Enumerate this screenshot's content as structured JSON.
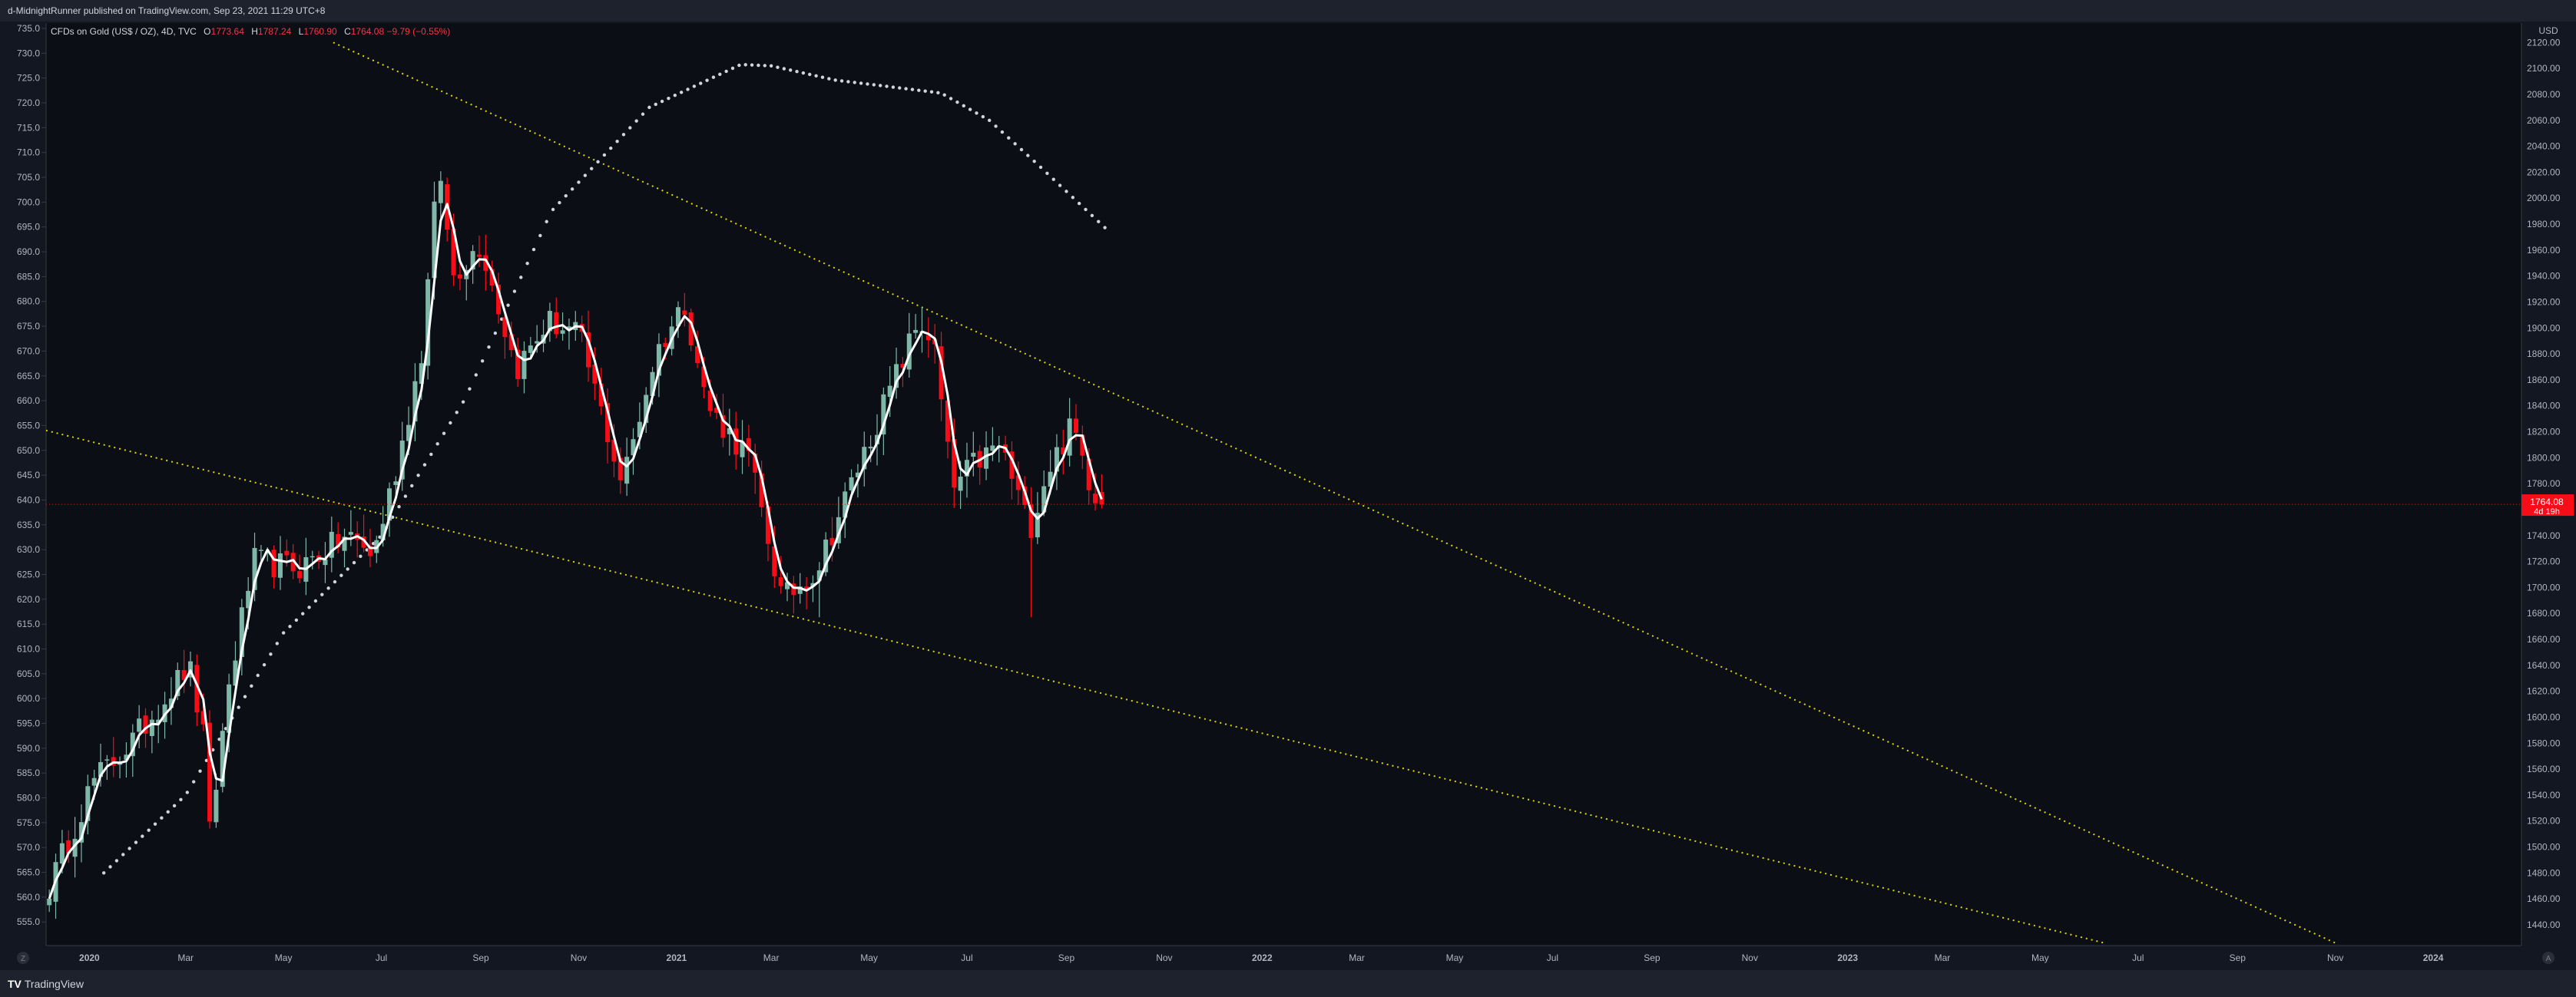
{
  "header": {
    "published": "d-MidnightRunner published on TradingView.com, Sep 23, 2021 11:29 UTC+8"
  },
  "legend": {
    "symbol": "CFDs on Gold (US$ / OZ), 4D, TVC",
    "o_label": "O",
    "o": "1773.64",
    "h_label": "H",
    "h": "1787.24",
    "l_label": "L",
    "l": "1760.90",
    "c_label": "C",
    "c": "1764.08",
    "change": "−9.79 (−0.55%)"
  },
  "footer": {
    "brand": "TradingView"
  },
  "colors": {
    "bg": "#0b0e15",
    "up": "#7fb8a9",
    "down": "#f70d17",
    "trend": "#e0d800",
    "ma": "#ffffff",
    "psar": "#d1d4dc"
  },
  "chart_data": {
    "type": "candlestick",
    "title": "CFDs on Gold (US$ / OZ), 4D, TVC",
    "currency": "USD",
    "x_range": [
      "2019-12-05",
      "2024-02-25"
    ],
    "left_axis": {
      "ticks": [
        "735.0",
        "730.0",
        "725.0",
        "720.0",
        "715.0",
        "710.0",
        "705.0",
        "700.0",
        "695.0",
        "690.0",
        "685.0",
        "680.0",
        "675.0",
        "670.0",
        "665.0",
        "660.0",
        "655.0",
        "650.0",
        "645.0",
        "640.0",
        "635.0",
        "630.0",
        "625.0",
        "620.0",
        "615.0",
        "610.0",
        "605.0",
        "600.0",
        "595.0",
        "590.0",
        "585.0",
        "580.0",
        "575.0",
        "570.0",
        "565.0",
        "560.0",
        "555.0"
      ]
    },
    "right_axis": {
      "unit": "USD",
      "range": [
        1424,
        2135
      ],
      "ticks": [
        "2120.00",
        "2100.00",
        "2080.00",
        "2060.00",
        "2040.00",
        "2020.00",
        "2000.00",
        "1980.00",
        "1960.00",
        "1940.00",
        "1920.00",
        "1900.00",
        "1880.00",
        "1860.00",
        "1840.00",
        "1820.00",
        "1800.00",
        "1780.00",
        "1760.00",
        "1740.00",
        "1720.00",
        "1700.00",
        "1680.00",
        "1660.00",
        "1640.00",
        "1620.00",
        "1600.00",
        "1580.00",
        "1560.00",
        "1540.00",
        "1520.00",
        "1500.00",
        "1480.00",
        "1460.00",
        "1440.00"
      ]
    },
    "x_ticks": [
      {
        "date": "2020-01-01",
        "label": "2020",
        "bold": true
      },
      {
        "date": "2020-03-01",
        "label": "Mar"
      },
      {
        "date": "2020-05-01",
        "label": "May"
      },
      {
        "date": "2020-07-01",
        "label": "Jul"
      },
      {
        "date": "2020-09-01",
        "label": "Sep"
      },
      {
        "date": "2020-11-01",
        "label": "Nov"
      },
      {
        "date": "2021-01-01",
        "label": "2021",
        "bold": true
      },
      {
        "date": "2021-03-01",
        "label": "Mar"
      },
      {
        "date": "2021-05-01",
        "label": "May"
      },
      {
        "date": "2021-07-01",
        "label": "Jul"
      },
      {
        "date": "2021-09-01",
        "label": "Sep"
      },
      {
        "date": "2021-11-01",
        "label": "Nov"
      },
      {
        "date": "2022-01-01",
        "label": "2022",
        "bold": true
      },
      {
        "date": "2022-03-01",
        "label": "Mar"
      },
      {
        "date": "2022-05-01",
        "label": "May"
      },
      {
        "date": "2022-07-01",
        "label": "Jul"
      },
      {
        "date": "2022-09-01",
        "label": "Sep"
      },
      {
        "date": "2022-11-01",
        "label": "Nov"
      },
      {
        "date": "2023-01-01",
        "label": "2023",
        "bold": true
      },
      {
        "date": "2023-03-01",
        "label": "Mar"
      },
      {
        "date": "2023-05-01",
        "label": "May"
      },
      {
        "date": "2023-07-01",
        "label": "Jul"
      },
      {
        "date": "2023-09-01",
        "label": "Sep"
      },
      {
        "date": "2023-11-01",
        "label": "Nov"
      },
      {
        "date": "2024-01-01",
        "label": "2024",
        "bold": true
      }
    ],
    "ohlc_anchors": [
      {
        "date": "2019-12-05",
        "close": 1463
      },
      {
        "date": "2020-01-03",
        "close": 1550
      },
      {
        "date": "2020-01-27",
        "close": 1580
      },
      {
        "date": "2020-02-20",
        "close": 1620
      },
      {
        "date": "2020-03-03",
        "close": 1640
      },
      {
        "date": "2020-03-12",
        "close": 1585
      },
      {
        "date": "2020-03-16",
        "close": 1510
      },
      {
        "date": "2020-03-28",
        "close": 1625
      },
      {
        "date": "2020-04-12",
        "close": 1720
      },
      {
        "date": "2020-05-10",
        "close": 1715
      },
      {
        "date": "2020-06-10",
        "close": 1740
      },
      {
        "date": "2020-06-26",
        "close": 1725
      },
      {
        "date": "2020-07-10",
        "close": 1790
      },
      {
        "date": "2020-07-26",
        "close": 1880
      },
      {
        "date": "2020-08-06",
        "close": 2028
      },
      {
        "date": "2020-08-14",
        "close": 1940
      },
      {
        "date": "2020-09-01",
        "close": 1965
      },
      {
        "date": "2020-09-23",
        "close": 1868
      },
      {
        "date": "2020-10-13",
        "close": 1905
      },
      {
        "date": "2020-11-01",
        "close": 1895
      },
      {
        "date": "2020-11-28",
        "close": 1780
      },
      {
        "date": "2020-12-19",
        "close": 1880
      },
      {
        "date": "2021-01-06",
        "close": 1920
      },
      {
        "date": "2021-01-20",
        "close": 1840
      },
      {
        "date": "2021-02-15",
        "close": 1800
      },
      {
        "date": "2021-03-08",
        "close": 1690
      },
      {
        "date": "2021-03-30",
        "close": 1715
      },
      {
        "date": "2021-04-20",
        "close": 1780
      },
      {
        "date": "2021-05-10",
        "close": 1840
      },
      {
        "date": "2021-06-01",
        "close": 1905
      },
      {
        "date": "2021-06-10",
        "close": 1890
      },
      {
        "date": "2021-06-22",
        "close": 1775
      },
      {
        "date": "2021-07-05",
        "close": 1795
      },
      {
        "date": "2021-07-22",
        "close": 1810
      },
      {
        "date": "2021-08-09",
        "close": 1745
      },
      {
        "date": "2021-08-20",
        "close": 1790
      },
      {
        "date": "2021-09-05",
        "close": 1825
      },
      {
        "date": "2021-09-16",
        "close": 1780
      },
      {
        "date": "2021-09-23",
        "close": 1764
      }
    ],
    "extreme_wicks": [
      {
        "date": "2020-03-18",
        "low": 1451
      },
      {
        "date": "2020-08-05",
        "high": 2075
      },
      {
        "date": "2021-08-09",
        "low": 1677
      },
      {
        "date": "2021-03-30",
        "low": 1677
      },
      {
        "date": "2021-06-03",
        "high": 1916
      }
    ],
    "moving_average": "smoothed close (white line)",
    "parabolic_sar": [
      {
        "date": "2020-01-10",
        "value": 1480
      },
      {
        "date": "2020-03-01",
        "value": 1540
      },
      {
        "date": "2020-05-01",
        "value": 1665
      },
      {
        "date": "2020-07-01",
        "value": 1740
      },
      {
        "date": "2020-08-22",
        "value": 1845
      },
      {
        "date": "2020-10-15",
        "value": 1990
      },
      {
        "date": "2020-12-15",
        "value": 2070
      },
      {
        "date": "2021-02-10",
        "value": 2103
      },
      {
        "date": "2021-03-01",
        "value": 2102
      },
      {
        "date": "2021-04-10",
        "value": 2091
      },
      {
        "date": "2021-05-20",
        "value": 2085
      },
      {
        "date": "2021-06-15",
        "value": 2081
      },
      {
        "date": "2021-07-15",
        "value": 2060
      },
      {
        "date": "2021-08-15",
        "value": 2025
      },
      {
        "date": "2021-09-27",
        "value": 1975
      }
    ],
    "trendlines": [
      {
        "name": "upper",
        "from": {
          "date": "2020-06-01",
          "value": 2120
        },
        "to": {
          "date": "2023-11-01",
          "value": 1426
        }
      },
      {
        "name": "lower",
        "from": {
          "date": "2019-12-05",
          "value": 1821
        },
        "to": {
          "date": "2023-06-10",
          "value": 1426
        }
      }
    ],
    "last_price": {
      "label": "1764.08",
      "value": 1764.08,
      "countdown": "4d 19h"
    }
  }
}
